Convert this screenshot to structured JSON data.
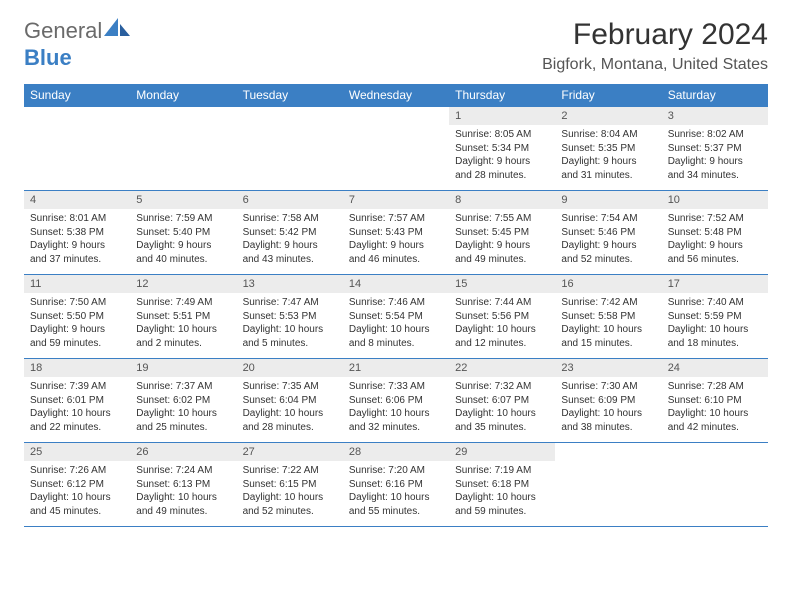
{
  "logo": {
    "general": "General",
    "blue": "Blue"
  },
  "title": "February 2024",
  "location": "Bigfork, Montana, United States",
  "headers": [
    "Sunday",
    "Monday",
    "Tuesday",
    "Wednesday",
    "Thursday",
    "Friday",
    "Saturday"
  ],
  "colors": {
    "header_bg": "#3b7fc4",
    "header_text": "#ffffff",
    "daynum_bg": "#ececec",
    "border": "#3b7fc4",
    "text": "#333333",
    "logo_gray": "#6a6a6a",
    "logo_blue": "#3b7fc4"
  },
  "weeks": [
    [
      {
        "day": "",
        "empty": true
      },
      {
        "day": "",
        "empty": true
      },
      {
        "day": "",
        "empty": true
      },
      {
        "day": "",
        "empty": true
      },
      {
        "day": "1",
        "sunrise": "Sunrise: 8:05 AM",
        "sunset": "Sunset: 5:34 PM",
        "daylight1": "Daylight: 9 hours",
        "daylight2": "and 28 minutes."
      },
      {
        "day": "2",
        "sunrise": "Sunrise: 8:04 AM",
        "sunset": "Sunset: 5:35 PM",
        "daylight1": "Daylight: 9 hours",
        "daylight2": "and 31 minutes."
      },
      {
        "day": "3",
        "sunrise": "Sunrise: 8:02 AM",
        "sunset": "Sunset: 5:37 PM",
        "daylight1": "Daylight: 9 hours",
        "daylight2": "and 34 minutes."
      }
    ],
    [
      {
        "day": "4",
        "sunrise": "Sunrise: 8:01 AM",
        "sunset": "Sunset: 5:38 PM",
        "daylight1": "Daylight: 9 hours",
        "daylight2": "and 37 minutes."
      },
      {
        "day": "5",
        "sunrise": "Sunrise: 7:59 AM",
        "sunset": "Sunset: 5:40 PM",
        "daylight1": "Daylight: 9 hours",
        "daylight2": "and 40 minutes."
      },
      {
        "day": "6",
        "sunrise": "Sunrise: 7:58 AM",
        "sunset": "Sunset: 5:42 PM",
        "daylight1": "Daylight: 9 hours",
        "daylight2": "and 43 minutes."
      },
      {
        "day": "7",
        "sunrise": "Sunrise: 7:57 AM",
        "sunset": "Sunset: 5:43 PM",
        "daylight1": "Daylight: 9 hours",
        "daylight2": "and 46 minutes."
      },
      {
        "day": "8",
        "sunrise": "Sunrise: 7:55 AM",
        "sunset": "Sunset: 5:45 PM",
        "daylight1": "Daylight: 9 hours",
        "daylight2": "and 49 minutes."
      },
      {
        "day": "9",
        "sunrise": "Sunrise: 7:54 AM",
        "sunset": "Sunset: 5:46 PM",
        "daylight1": "Daylight: 9 hours",
        "daylight2": "and 52 minutes."
      },
      {
        "day": "10",
        "sunrise": "Sunrise: 7:52 AM",
        "sunset": "Sunset: 5:48 PM",
        "daylight1": "Daylight: 9 hours",
        "daylight2": "and 56 minutes."
      }
    ],
    [
      {
        "day": "11",
        "sunrise": "Sunrise: 7:50 AM",
        "sunset": "Sunset: 5:50 PM",
        "daylight1": "Daylight: 9 hours",
        "daylight2": "and 59 minutes."
      },
      {
        "day": "12",
        "sunrise": "Sunrise: 7:49 AM",
        "sunset": "Sunset: 5:51 PM",
        "daylight1": "Daylight: 10 hours",
        "daylight2": "and 2 minutes."
      },
      {
        "day": "13",
        "sunrise": "Sunrise: 7:47 AM",
        "sunset": "Sunset: 5:53 PM",
        "daylight1": "Daylight: 10 hours",
        "daylight2": "and 5 minutes."
      },
      {
        "day": "14",
        "sunrise": "Sunrise: 7:46 AM",
        "sunset": "Sunset: 5:54 PM",
        "daylight1": "Daylight: 10 hours",
        "daylight2": "and 8 minutes."
      },
      {
        "day": "15",
        "sunrise": "Sunrise: 7:44 AM",
        "sunset": "Sunset: 5:56 PM",
        "daylight1": "Daylight: 10 hours",
        "daylight2": "and 12 minutes."
      },
      {
        "day": "16",
        "sunrise": "Sunrise: 7:42 AM",
        "sunset": "Sunset: 5:58 PM",
        "daylight1": "Daylight: 10 hours",
        "daylight2": "and 15 minutes."
      },
      {
        "day": "17",
        "sunrise": "Sunrise: 7:40 AM",
        "sunset": "Sunset: 5:59 PM",
        "daylight1": "Daylight: 10 hours",
        "daylight2": "and 18 minutes."
      }
    ],
    [
      {
        "day": "18",
        "sunrise": "Sunrise: 7:39 AM",
        "sunset": "Sunset: 6:01 PM",
        "daylight1": "Daylight: 10 hours",
        "daylight2": "and 22 minutes."
      },
      {
        "day": "19",
        "sunrise": "Sunrise: 7:37 AM",
        "sunset": "Sunset: 6:02 PM",
        "daylight1": "Daylight: 10 hours",
        "daylight2": "and 25 minutes."
      },
      {
        "day": "20",
        "sunrise": "Sunrise: 7:35 AM",
        "sunset": "Sunset: 6:04 PM",
        "daylight1": "Daylight: 10 hours",
        "daylight2": "and 28 minutes."
      },
      {
        "day": "21",
        "sunrise": "Sunrise: 7:33 AM",
        "sunset": "Sunset: 6:06 PM",
        "daylight1": "Daylight: 10 hours",
        "daylight2": "and 32 minutes."
      },
      {
        "day": "22",
        "sunrise": "Sunrise: 7:32 AM",
        "sunset": "Sunset: 6:07 PM",
        "daylight1": "Daylight: 10 hours",
        "daylight2": "and 35 minutes."
      },
      {
        "day": "23",
        "sunrise": "Sunrise: 7:30 AM",
        "sunset": "Sunset: 6:09 PM",
        "daylight1": "Daylight: 10 hours",
        "daylight2": "and 38 minutes."
      },
      {
        "day": "24",
        "sunrise": "Sunrise: 7:28 AM",
        "sunset": "Sunset: 6:10 PM",
        "daylight1": "Daylight: 10 hours",
        "daylight2": "and 42 minutes."
      }
    ],
    [
      {
        "day": "25",
        "sunrise": "Sunrise: 7:26 AM",
        "sunset": "Sunset: 6:12 PM",
        "daylight1": "Daylight: 10 hours",
        "daylight2": "and 45 minutes."
      },
      {
        "day": "26",
        "sunrise": "Sunrise: 7:24 AM",
        "sunset": "Sunset: 6:13 PM",
        "daylight1": "Daylight: 10 hours",
        "daylight2": "and 49 minutes."
      },
      {
        "day": "27",
        "sunrise": "Sunrise: 7:22 AM",
        "sunset": "Sunset: 6:15 PM",
        "daylight1": "Daylight: 10 hours",
        "daylight2": "and 52 minutes."
      },
      {
        "day": "28",
        "sunrise": "Sunrise: 7:20 AM",
        "sunset": "Sunset: 6:16 PM",
        "daylight1": "Daylight: 10 hours",
        "daylight2": "and 55 minutes."
      },
      {
        "day": "29",
        "sunrise": "Sunrise: 7:19 AM",
        "sunset": "Sunset: 6:18 PM",
        "daylight1": "Daylight: 10 hours",
        "daylight2": "and 59 minutes."
      },
      {
        "day": "",
        "empty": true
      },
      {
        "day": "",
        "empty": true
      }
    ]
  ]
}
